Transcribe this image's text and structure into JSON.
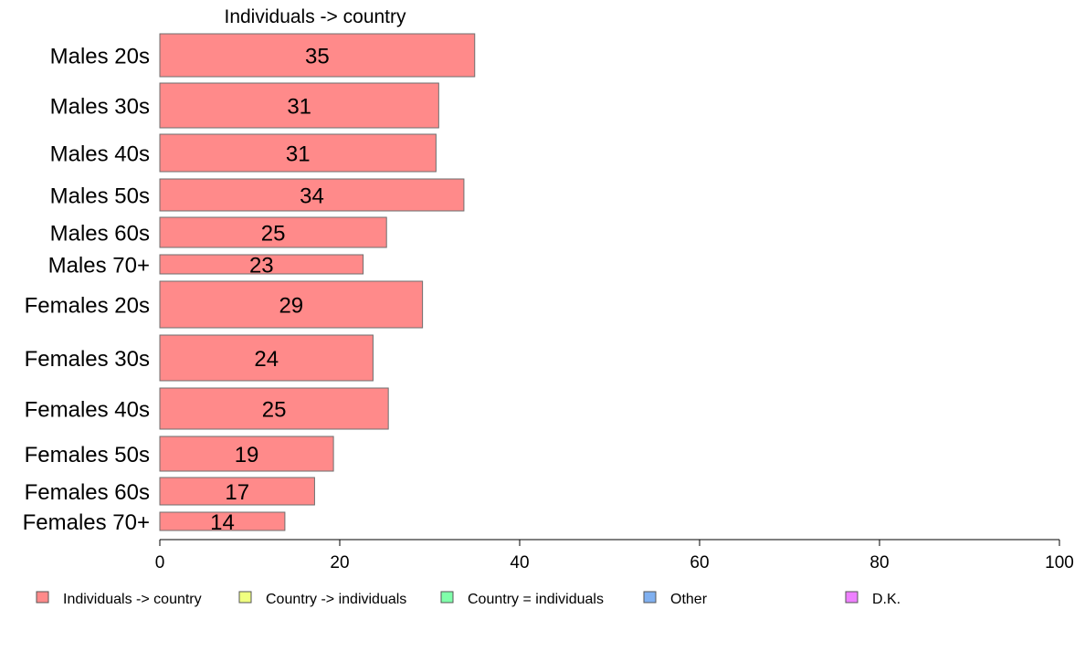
{
  "chart_data": {
    "type": "bar",
    "orientation": "horizontal",
    "title": "Individuals -> country",
    "xlabel": "",
    "ylabel": "",
    "xlim": [
      0,
      100
    ],
    "x_ticks": [
      0,
      20,
      40,
      60,
      80,
      100
    ],
    "grid": false,
    "legend_position": "bottom",
    "categories": [
      "Males 20s",
      "Males 30s",
      "Males 40s",
      "Males 50s",
      "Males 60s",
      "Males 70+",
      "Females 20s",
      "Females 30s",
      "Females 40s",
      "Females 50s",
      "Females 60s",
      "Females 70+"
    ],
    "series": [
      {
        "name": "Individuals -> country",
        "color": "#ff8a8a",
        "values": [
          35,
          31,
          31,
          34,
          25,
          23,
          29,
          24,
          25,
          19,
          17,
          14
        ],
        "widths": [
          35,
          31,
          30.7,
          33.8,
          25.2,
          22.6,
          29.2,
          23.7,
          25.4,
          19.3,
          17.2,
          13.9
        ]
      }
    ],
    "legend": [
      {
        "label": "Individuals -> country",
        "color": "#ff8a8a"
      },
      {
        "label": "Country -> individuals",
        "color": "#f0ff80"
      },
      {
        "label": "Country = individuals",
        "color": "#80ffaa"
      },
      {
        "label": "Other",
        "color": "#80b0f0"
      },
      {
        "label": "D.K.",
        "color": "#ee80ff"
      }
    ]
  }
}
